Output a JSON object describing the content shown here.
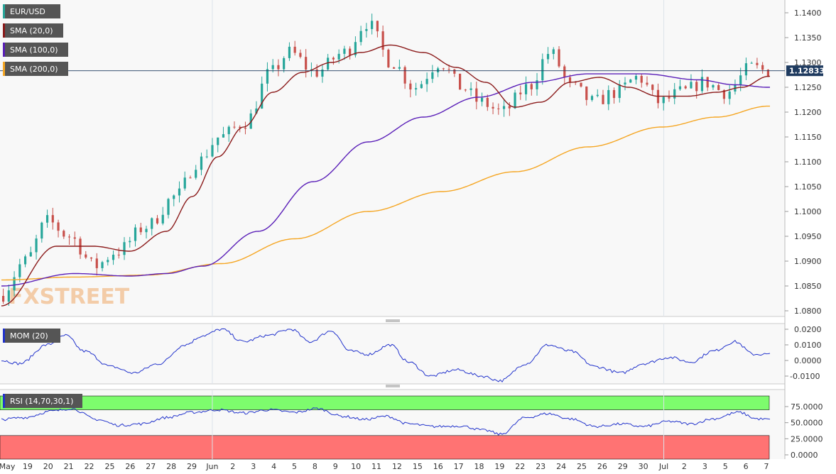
{
  "chart_data": {
    "type": "candlestick",
    "symbol": "EUR/USD",
    "legend": [
      {
        "name": "EUR/USD",
        "color": "#26a69a"
      },
      {
        "name": "SMA (20,0)",
        "color": "#8b1a1a"
      },
      {
        "name": "SMA (100,0)",
        "color": "#5a1fb8"
      },
      {
        "name": "SMA (200,0)",
        "color": "#f5a623"
      }
    ],
    "last_price_label": "1.12833",
    "last_price": 1.12833,
    "watermark": "FXSTREET",
    "x_labels": [
      "May",
      "19",
      "20",
      "21",
      "22",
      "25",
      "26",
      "27",
      "28",
      "29",
      "Jun",
      "2",
      "3",
      "4",
      "5",
      "8",
      "9",
      "10",
      "11",
      "12",
      "15",
      "16",
      "17",
      "18",
      "19",
      "22",
      "23",
      "24",
      "25",
      "26",
      "29",
      "30",
      "Jul",
      "2",
      "3",
      "5",
      "6",
      "7"
    ],
    "main_panel": {
      "yticks": [
        "1.1400",
        "1.1350",
        "1.1300",
        "1.1250",
        "1.1200",
        "1.1150",
        "1.1100",
        "1.1050",
        "1.1000",
        "1.0950",
        "1.0900",
        "1.0850",
        "1.0800"
      ],
      "ylim": [
        1.078,
        1.142
      ],
      "anchors_candles": [
        [
          0,
          1.083
        ],
        [
          14,
          1.09
        ],
        [
          26,
          1.098
        ],
        [
          38,
          1.095
        ],
        [
          52,
          1.089
        ],
        [
          64,
          1.092
        ],
        [
          80,
          1.097
        ],
        [
          96,
          1.103
        ],
        [
          108,
          1.11
        ],
        [
          120,
          1.115
        ],
        [
          134,
          1.118
        ],
        [
          148,
          1.128
        ],
        [
          158,
          1.132
        ],
        [
          172,
          1.128
        ],
        [
          188,
          1.132
        ],
        [
          200,
          1.138
        ],
        [
          214,
          1.13
        ],
        [
          226,
          1.125
        ],
        [
          240,
          1.13
        ],
        [
          252,
          1.125
        ],
        [
          262,
          1.122
        ],
        [
          274,
          1.12
        ],
        [
          288,
          1.125
        ],
        [
          300,
          1.132
        ],
        [
          312,
          1.125
        ],
        [
          324,
          1.122
        ],
        [
          336,
          1.124
        ],
        [
          348,
          1.127
        ],
        [
          360,
          1.122
        ],
        [
          372,
          1.124
        ],
        [
          384,
          1.126
        ],
        [
          396,
          1.124
        ],
        [
          410,
          1.129
        ],
        [
          418,
          1.1283
        ]
      ],
      "anchors_sma20": [
        [
          0,
          1.081
        ],
        [
          30,
          1.093
        ],
        [
          50,
          1.093
        ],
        [
          70,
          1.092
        ],
        [
          90,
          1.096
        ],
        [
          104,
          1.103
        ],
        [
          118,
          1.111
        ],
        [
          132,
          1.117
        ],
        [
          148,
          1.124
        ],
        [
          164,
          1.128
        ],
        [
          180,
          1.13
        ],
        [
          196,
          1.132
        ],
        [
          212,
          1.1335
        ],
        [
          230,
          1.132
        ],
        [
          248,
          1.129
        ],
        [
          264,
          1.126
        ],
        [
          280,
          1.121
        ],
        [
          294,
          1.122
        ],
        [
          310,
          1.126
        ],
        [
          326,
          1.127
        ],
        [
          342,
          1.125
        ],
        [
          358,
          1.1232
        ],
        [
          374,
          1.1232
        ],
        [
          390,
          1.124
        ],
        [
          404,
          1.125
        ],
        [
          418,
          1.1272
        ]
      ],
      "anchors_sma100": [
        [
          0,
          1.085
        ],
        [
          40,
          1.0875
        ],
        [
          70,
          1.087
        ],
        [
          90,
          1.0875
        ],
        [
          110,
          1.089
        ],
        [
          140,
          1.096
        ],
        [
          170,
          1.106
        ],
        [
          200,
          1.114
        ],
        [
          230,
          1.119
        ],
        [
          260,
          1.123
        ],
        [
          290,
          1.126
        ],
        [
          320,
          1.1277
        ],
        [
          350,
          1.1277
        ],
        [
          380,
          1.1265
        ],
        [
          400,
          1.1255
        ],
        [
          418,
          1.125
        ]
      ],
      "anchors_sma200": [
        [
          0,
          1.0862
        ],
        [
          40,
          1.0868
        ],
        [
          80,
          1.0872
        ],
        [
          120,
          1.0895
        ],
        [
          160,
          1.0945
        ],
        [
          200,
          1.1
        ],
        [
          240,
          1.104
        ],
        [
          280,
          1.108
        ],
        [
          320,
          1.113
        ],
        [
          360,
          1.117
        ],
        [
          390,
          1.119
        ],
        [
          418,
          1.1212
        ]
      ]
    },
    "mom_panel": {
      "name": "MOM (20)",
      "color": "#2233cc",
      "yticks": [
        "0.0200",
        "0.0100",
        "0.0000",
        "-0.0100"
      ],
      "ylim": [
        -0.0145,
        0.0235
      ],
      "anchors": [
        [
          0,
          0.0
        ],
        [
          10,
          -0.002
        ],
        [
          25,
          0.01
        ],
        [
          35,
          0.016
        ],
        [
          45,
          0.006
        ],
        [
          60,
          -0.004
        ],
        [
          72,
          -0.008
        ],
        [
          86,
          -0.002
        ],
        [
          100,
          0.01
        ],
        [
          110,
          0.016
        ],
        [
          120,
          0.02
        ],
        [
          132,
          0.012
        ],
        [
          145,
          0.016
        ],
        [
          158,
          0.02
        ],
        [
          168,
          0.012
        ],
        [
          180,
          0.019
        ],
        [
          190,
          0.006
        ],
        [
          200,
          0.004
        ],
        [
          212,
          0.01
        ],
        [
          222,
          -0.001
        ],
        [
          234,
          -0.01
        ],
        [
          248,
          -0.006
        ],
        [
          262,
          -0.01
        ],
        [
          272,
          -0.013
        ],
        [
          286,
          -0.002
        ],
        [
          298,
          0.01
        ],
        [
          310,
          0.006
        ],
        [
          324,
          -0.004
        ],
        [
          338,
          -0.008
        ],
        [
          350,
          -0.002
        ],
        [
          364,
          0.002
        ],
        [
          376,
          -0.001
        ],
        [
          388,
          0.006
        ],
        [
          400,
          0.012
        ],
        [
          410,
          0.004
        ],
        [
          418,
          0.004
        ]
      ]
    },
    "rsi_panel": {
      "name": "RSI (14,70,30,1)",
      "color": "#2233cc",
      "overbought_color": "#7dfc6d",
      "oversold_color": "#ff7373",
      "overbought": 70,
      "oversold": 30,
      "yticks": [
        "75.0000",
        "50.0000",
        "25.0000",
        "0.0000"
      ],
      "ylim": [
        0,
        100
      ],
      "anchors": [
        [
          0,
          55
        ],
        [
          12,
          58
        ],
        [
          28,
          68
        ],
        [
          38,
          72
        ],
        [
          52,
          55
        ],
        [
          64,
          46
        ],
        [
          76,
          48
        ],
        [
          90,
          58
        ],
        [
          104,
          66
        ],
        [
          118,
          70
        ],
        [
          132,
          65
        ],
        [
          146,
          70
        ],
        [
          160,
          66
        ],
        [
          172,
          72
        ],
        [
          186,
          60
        ],
        [
          198,
          55
        ],
        [
          210,
          60
        ],
        [
          222,
          48
        ],
        [
          236,
          44
        ],
        [
          250,
          45
        ],
        [
          264,
          38
        ],
        [
          272,
          32
        ],
        [
          286,
          58
        ],
        [
          298,
          64
        ],
        [
          310,
          56
        ],
        [
          324,
          44
        ],
        [
          338,
          48
        ],
        [
          350,
          44
        ],
        [
          364,
          52
        ],
        [
          376,
          48
        ],
        [
          388,
          56
        ],
        [
          402,
          66
        ],
        [
          412,
          56
        ],
        [
          418,
          55
        ]
      ]
    }
  }
}
